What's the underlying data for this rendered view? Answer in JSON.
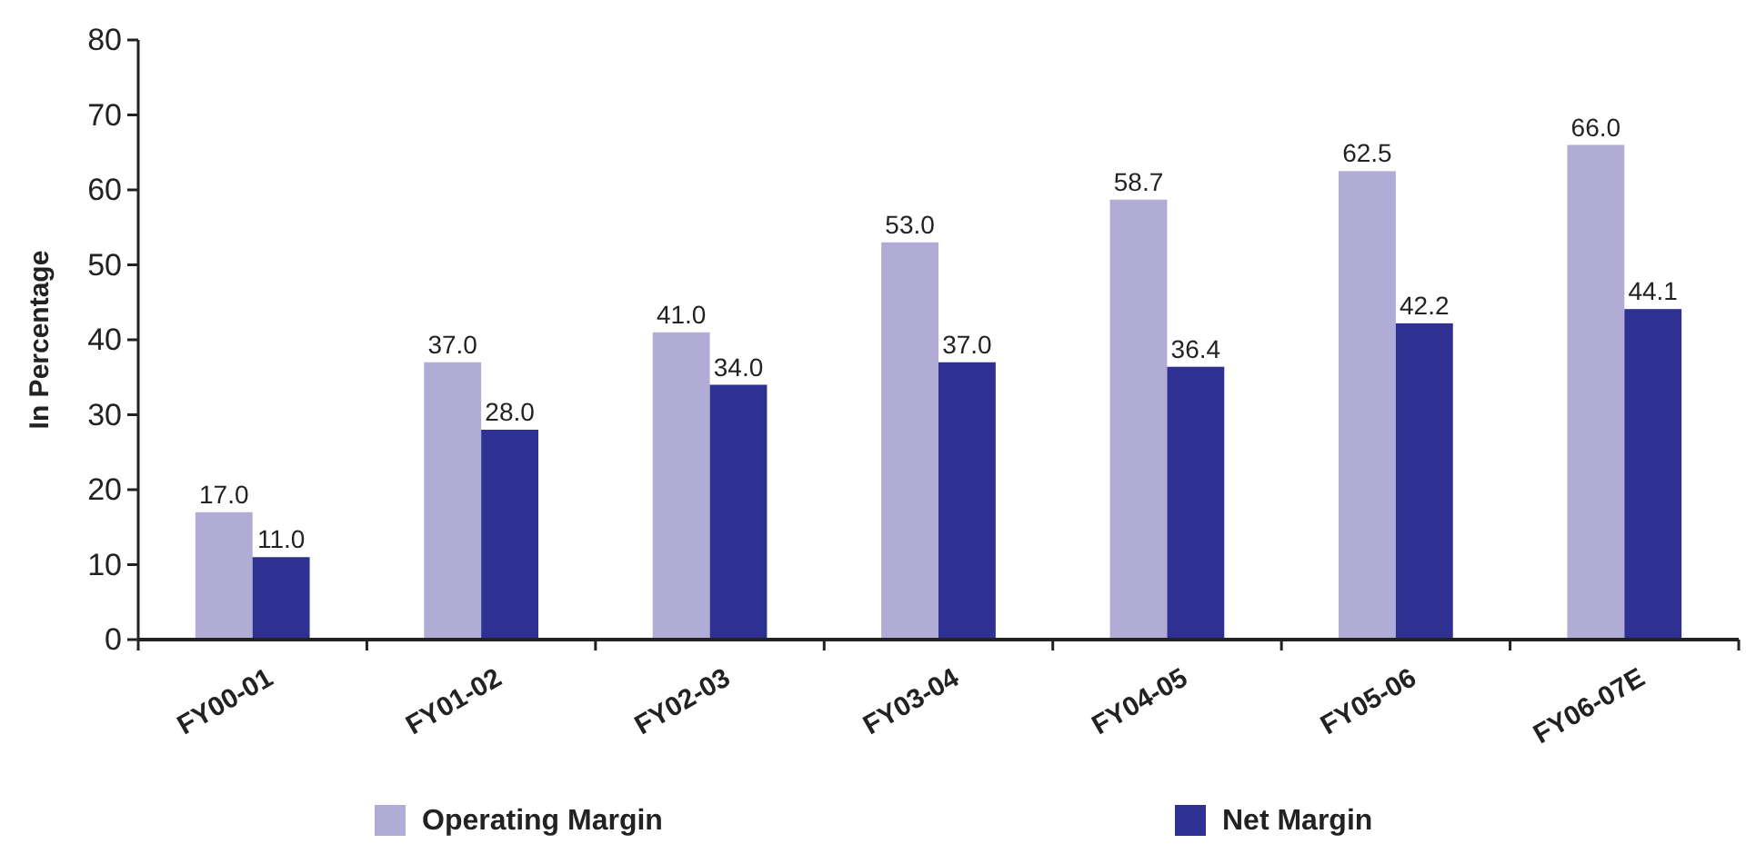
{
  "chart_data": {
    "type": "bar",
    "categories": [
      "FY00-01",
      "FY01-02",
      "FY02-03",
      "FY03-04",
      "FY04-05",
      "FY05-06",
      "FY06-07E"
    ],
    "ylabel": "In Percentage",
    "ylim": [
      0,
      80
    ],
    "yticks": [
      0,
      10,
      20,
      30,
      40,
      50,
      60,
      70,
      80
    ],
    "legend": "bottom",
    "series": [
      {
        "name": "Operating Margin",
        "color": "#b0acd6",
        "values": [
          17,
          37,
          41,
          53,
          58.7,
          62.5,
          66
        ],
        "value_labels": [
          "17.0",
          "37.0",
          "41.0",
          "53.0",
          "58.7",
          "62.5",
          "66.0"
        ]
      },
      {
        "name": "Net Margin",
        "color": "#2e3192",
        "values": [
          11,
          28,
          34,
          37,
          36.4,
          42.2,
          44.1
        ],
        "value_labels": [
          "11.0",
          "28.0",
          "34.0",
          "37.0",
          "36.4",
          "42.2",
          "44.1"
        ]
      }
    ]
  }
}
